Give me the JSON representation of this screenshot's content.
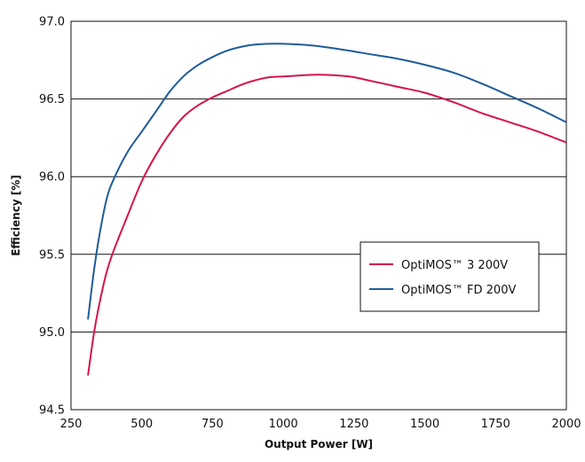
{
  "chart_data": {
    "type": "line",
    "title": "",
    "xlabel": "Output Power [W]",
    "ylabel": "Efficiency [%]",
    "xlim": [
      250,
      2000
    ],
    "ylim": [
      94.5,
      97.0
    ],
    "xticks": [
      250,
      500,
      750,
      1000,
      1250,
      1500,
      1750,
      2000
    ],
    "yticks": [
      94.5,
      95.0,
      95.5,
      96.0,
      96.5,
      97.0
    ],
    "x_tick_labels": [
      "250",
      "500",
      "750",
      "1000",
      "1250",
      "1500",
      "1750",
      "2000"
    ],
    "y_tick_labels": [
      "94.5",
      "95.0",
      "95.5",
      "96.0",
      "96.5",
      "97.0"
    ],
    "grid": "horizontal",
    "legend_position": "center-right",
    "series": [
      {
        "name": "OptiMOS™ 3 200V",
        "color": "#d6134a",
        "x": [
          310,
          330,
          350,
          375,
          400,
          450,
          500,
          550,
          600,
          650,
          700,
          750,
          800,
          850,
          900,
          950,
          1000,
          1100,
          1150,
          1200,
          1250,
          1300,
          1400,
          1500,
          1600,
          1700,
          1800,
          1900,
          2000
        ],
        "y": [
          94.72,
          94.98,
          95.18,
          95.38,
          95.52,
          95.75,
          95.97,
          96.14,
          96.28,
          96.39,
          96.46,
          96.51,
          96.55,
          96.59,
          96.62,
          96.64,
          96.645,
          96.655,
          96.655,
          96.65,
          96.64,
          96.62,
          96.58,
          96.54,
          96.48,
          96.41,
          96.35,
          96.29,
          96.22
        ]
      },
      {
        "name": "OptiMOS™ FD 200V",
        "color": "#1f5c99",
        "x": [
          310,
          330,
          350,
          375,
          400,
          450,
          500,
          550,
          600,
          650,
          700,
          750,
          800,
          850,
          900,
          950,
          1000,
          1100,
          1200,
          1300,
          1400,
          1500,
          1600,
          1700,
          1800,
          1900,
          2000
        ],
        "y": [
          95.08,
          95.38,
          95.62,
          95.85,
          95.98,
          96.16,
          96.29,
          96.42,
          96.55,
          96.65,
          96.72,
          96.77,
          96.81,
          96.835,
          96.85,
          96.855,
          96.855,
          96.845,
          96.82,
          96.79,
          96.76,
          96.72,
          96.67,
          96.6,
          96.52,
          96.44,
          96.35
        ]
      }
    ]
  }
}
